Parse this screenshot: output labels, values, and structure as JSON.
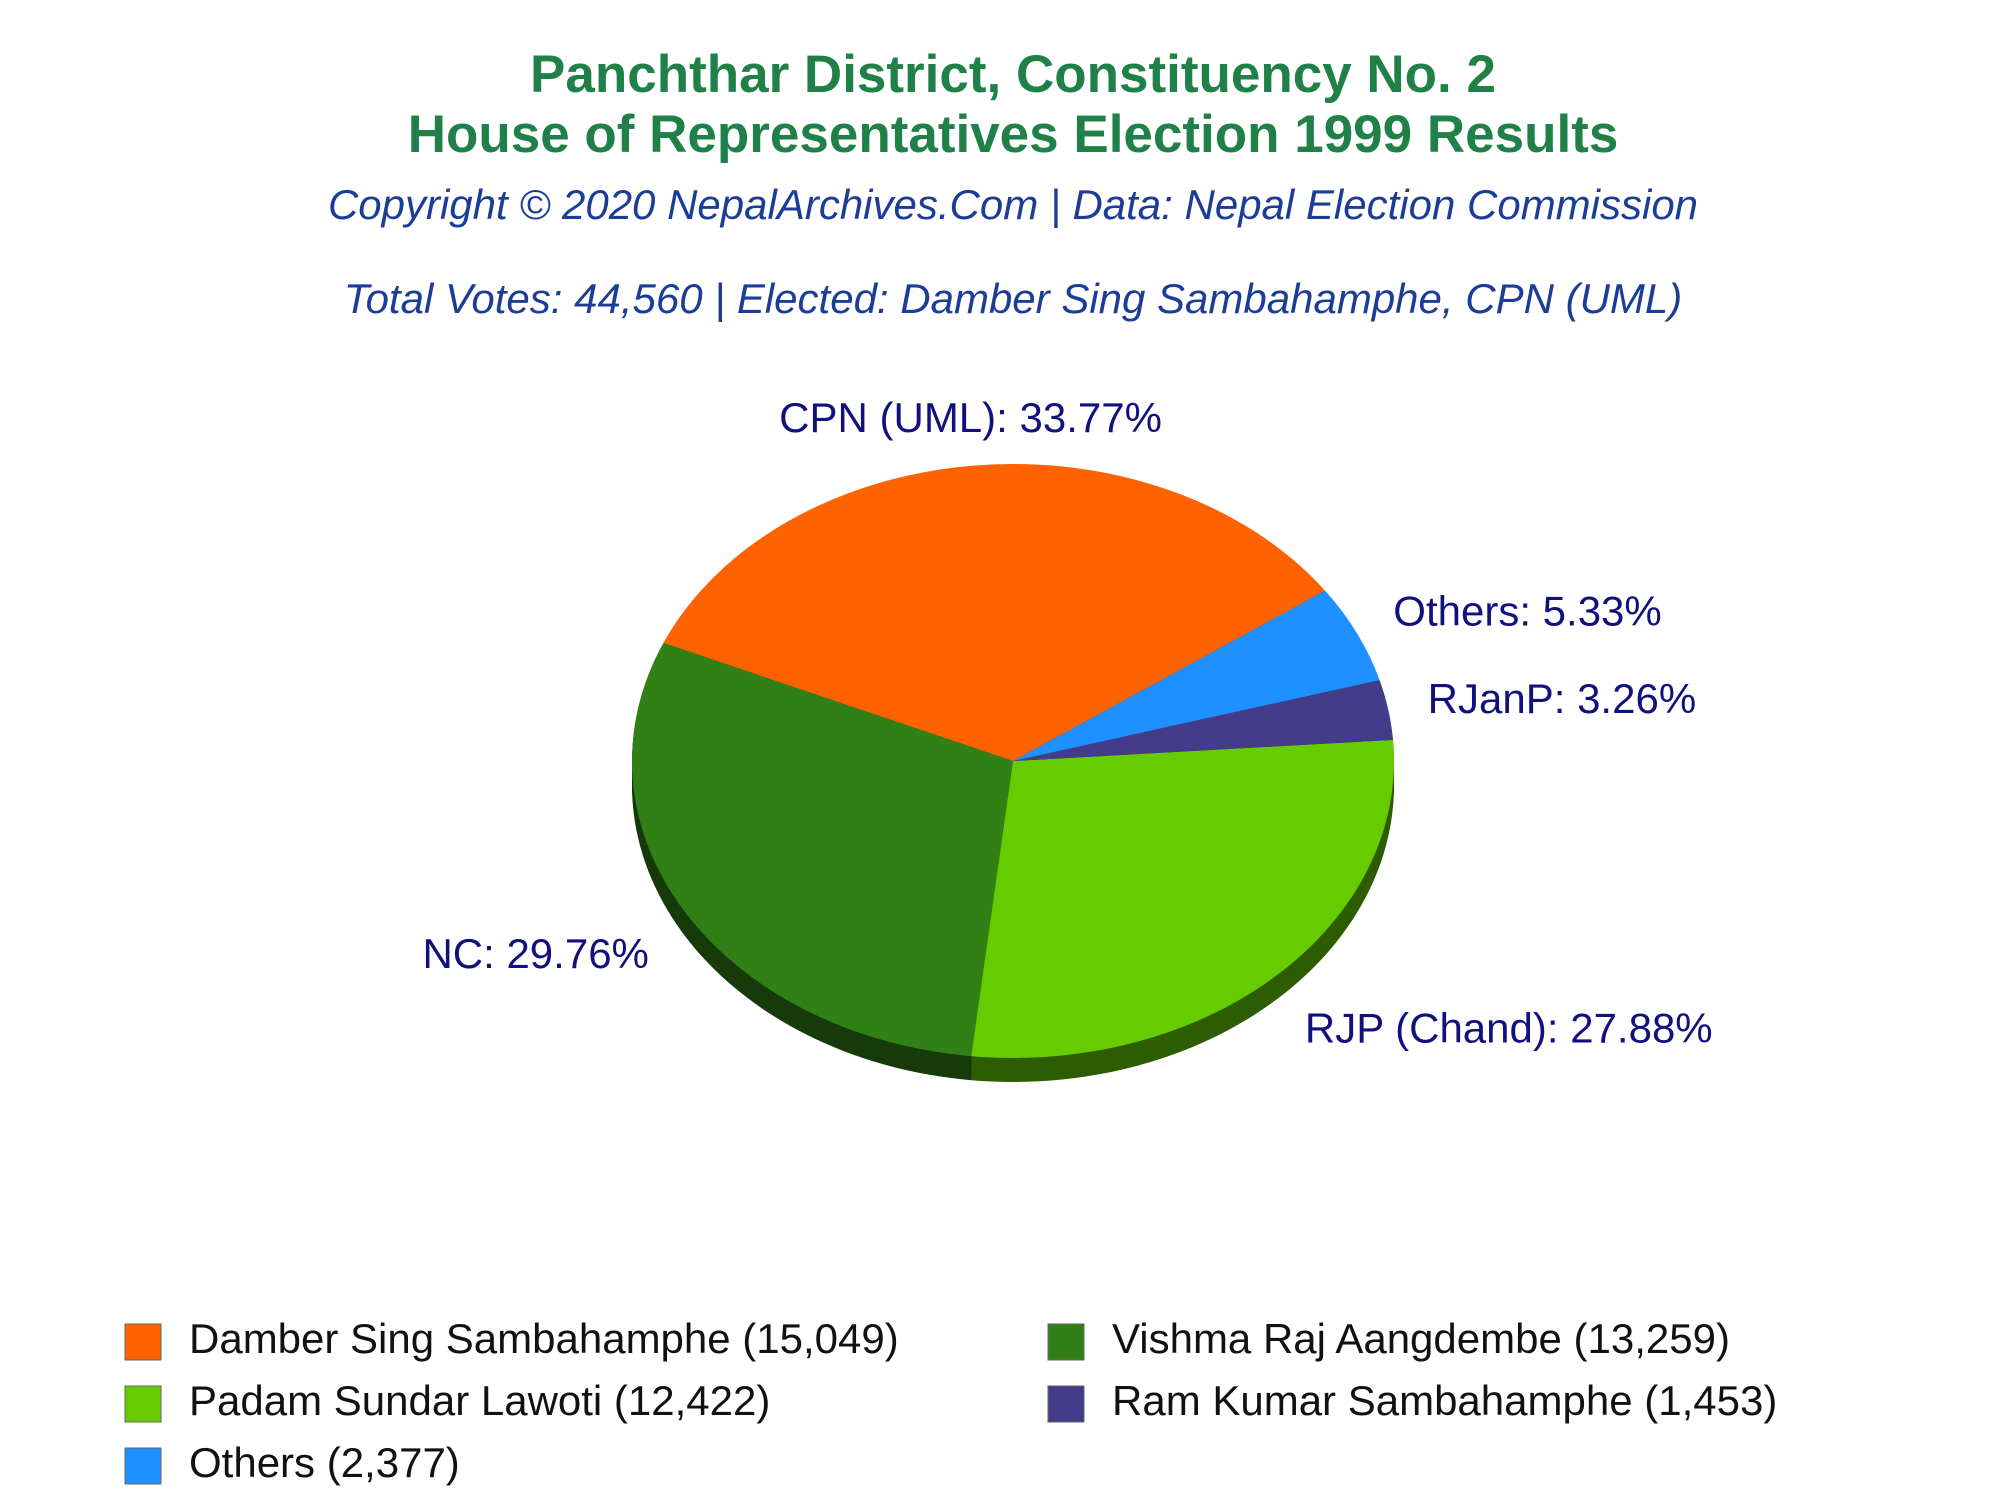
{
  "chart_data": {
    "type": "pie",
    "title": [
      "Panchthar District, Constituency No. 2",
      "House of Representatives Election 1999 Results"
    ],
    "subtitle": [
      "Copyright © 2020 NepalArchives.Com | Data: Nepal Election Commission",
      "Total Votes: 44,560 | Elected: Damber Sing Sambahamphe, CPN (UML)"
    ],
    "categories": [
      "Damber Sing Sambahamphe (15,049)",
      "Vishma Raj Aangdembe (13,259)",
      "Padam Sundar Lawoti (12,422)",
      "Ram Kumar Sambahamphe (1,453)",
      "Others (2,377)"
    ],
    "values": [
      33.77,
      29.76,
      27.88,
      3.26,
      5.33
    ],
    "value_labels": [
      "CPN (UML): 33.77%",
      "NC: 29.76%",
      "RJP (Chand): 27.88%",
      "RJanP: 3.26%",
      "Others: 5.33%"
    ],
    "colors": [
      "#ff6200",
      "#318016",
      "#66cc00",
      "#443c8a",
      "#1e90ff"
    ]
  }
}
